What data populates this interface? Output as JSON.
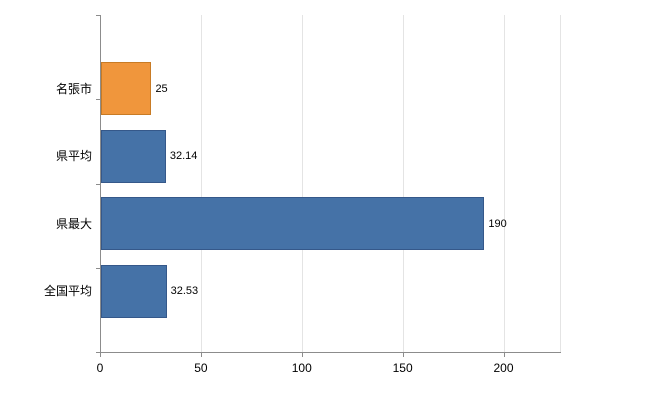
{
  "chart_data": {
    "type": "bar",
    "orientation": "horizontal",
    "title": "",
    "xlabel": "",
    "ylabel": "",
    "categories": [
      "名張市",
      "県平均",
      "県最大",
      "全国平均"
    ],
    "values": [
      25,
      32.14,
      190,
      32.53
    ],
    "value_labels": [
      "25",
      "32.14",
      "190",
      "32.53"
    ],
    "bar_colors": [
      "#F0963C",
      "#4572A7",
      "#4572A7",
      "#4572A7"
    ],
    "bar_border_colors": [
      "#C87B25",
      "#35588A",
      "#35588A",
      "#35588A"
    ],
    "x_ticks": [
      0,
      50,
      100,
      150,
      200
    ],
    "x_tick_labels": [
      "0",
      "50",
      "100",
      "150",
      "200"
    ],
    "xlim": [
      0,
      228
    ],
    "grid": true,
    "legend": "none",
    "colors": {
      "grid": "#E4E4E4",
      "axis": "#8C8C8C",
      "text": "#000000",
      "background": "#FFFFFF"
    }
  }
}
